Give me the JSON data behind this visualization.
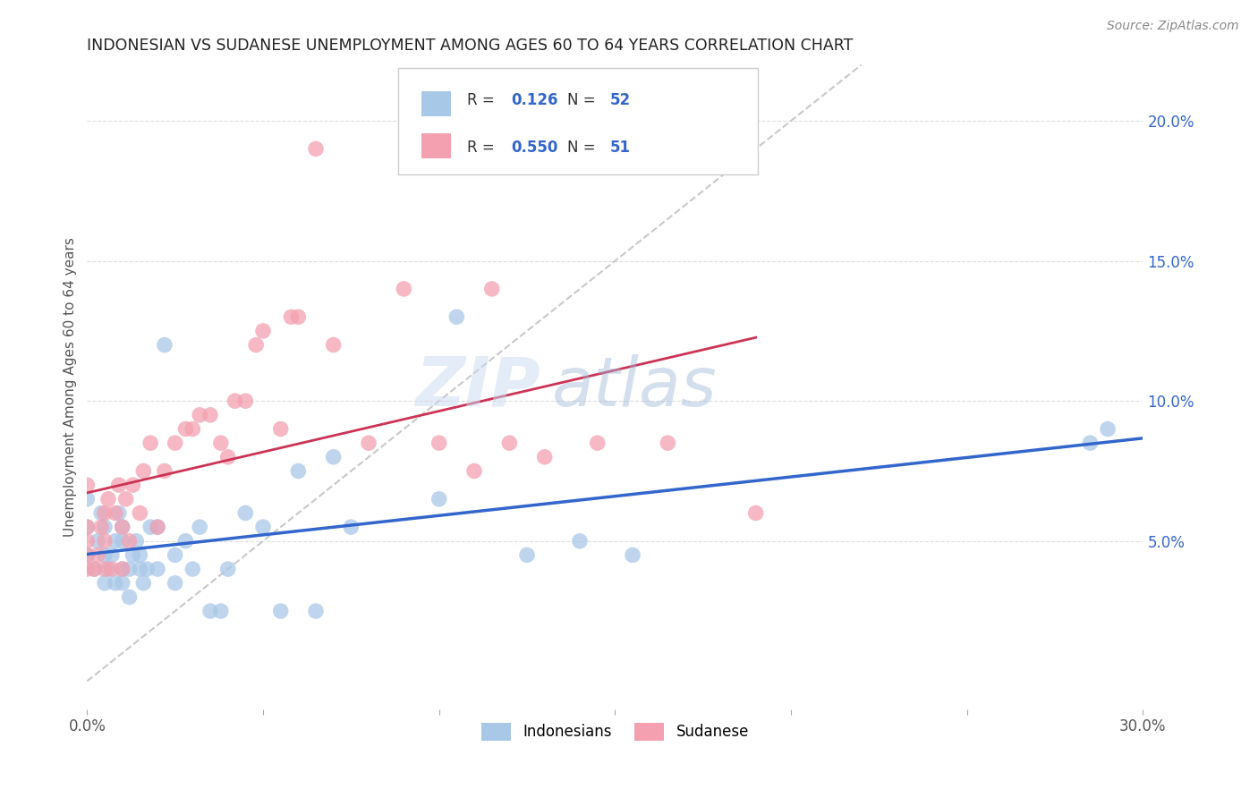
{
  "title": "INDONESIAN VS SUDANESE UNEMPLOYMENT AMONG AGES 60 TO 64 YEARS CORRELATION CHART",
  "source": "Source: ZipAtlas.com",
  "ylabel": "Unemployment Among Ages 60 to 64 years",
  "xlim": [
    0.0,
    0.3
  ],
  "ylim": [
    -0.01,
    0.22
  ],
  "yticks_right": [
    0.05,
    0.1,
    0.15,
    0.2
  ],
  "ytick_right_labels": [
    "5.0%",
    "10.0%",
    "15.0%",
    "20.0%"
  ],
  "color_indonesian": "#a8c8e8",
  "color_sudanese": "#f4a0b0",
  "color_line_indonesian": "#3366cc",
  "color_line_sudanese": "#cc3355",
  "color_diagonal": "#bbbbbb",
  "color_text_blue": "#3366cc",
  "watermark_zip": "ZIP",
  "watermark_atlas": "atlas",
  "background_color": "#ffffff",
  "grid_color": "#dddddd",
  "indonesian_x": [
    0.0,
    0.0,
    0.0,
    0.002,
    0.003,
    0.004,
    0.005,
    0.005,
    0.005,
    0.006,
    0.007,
    0.008,
    0.008,
    0.009,
    0.01,
    0.01,
    0.01,
    0.01,
    0.012,
    0.012,
    0.013,
    0.014,
    0.015,
    0.015,
    0.016,
    0.017,
    0.018,
    0.02,
    0.02,
    0.022,
    0.025,
    0.025,
    0.028,
    0.03,
    0.032,
    0.035,
    0.038,
    0.04,
    0.045,
    0.05,
    0.055,
    0.06,
    0.065,
    0.07,
    0.075,
    0.1,
    0.105,
    0.125,
    0.14,
    0.155,
    0.285,
    0.29
  ],
  "indonesian_y": [
    0.045,
    0.055,
    0.065,
    0.04,
    0.05,
    0.06,
    0.035,
    0.045,
    0.055,
    0.04,
    0.045,
    0.035,
    0.05,
    0.06,
    0.035,
    0.04,
    0.05,
    0.055,
    0.03,
    0.04,
    0.045,
    0.05,
    0.04,
    0.045,
    0.035,
    0.04,
    0.055,
    0.04,
    0.055,
    0.12,
    0.035,
    0.045,
    0.05,
    0.04,
    0.055,
    0.025,
    0.025,
    0.04,
    0.06,
    0.055,
    0.025,
    0.075,
    0.025,
    0.08,
    0.055,
    0.065,
    0.13,
    0.045,
    0.05,
    0.045,
    0.085,
    0.09
  ],
  "sudanese_x": [
    0.0,
    0.0,
    0.0,
    0.0,
    0.0,
    0.002,
    0.003,
    0.004,
    0.005,
    0.005,
    0.005,
    0.006,
    0.007,
    0.008,
    0.009,
    0.01,
    0.01,
    0.011,
    0.012,
    0.013,
    0.015,
    0.016,
    0.018,
    0.02,
    0.022,
    0.025,
    0.028,
    0.03,
    0.032,
    0.035,
    0.038,
    0.04,
    0.042,
    0.045,
    0.048,
    0.05,
    0.055,
    0.058,
    0.06,
    0.065,
    0.07,
    0.08,
    0.09,
    0.1,
    0.11,
    0.115,
    0.12,
    0.13,
    0.145,
    0.165,
    0.19
  ],
  "sudanese_y": [
    0.04,
    0.045,
    0.05,
    0.055,
    0.07,
    0.04,
    0.045,
    0.055,
    0.04,
    0.05,
    0.06,
    0.065,
    0.04,
    0.06,
    0.07,
    0.04,
    0.055,
    0.065,
    0.05,
    0.07,
    0.06,
    0.075,
    0.085,
    0.055,
    0.075,
    0.085,
    0.09,
    0.09,
    0.095,
    0.095,
    0.085,
    0.08,
    0.1,
    0.1,
    0.12,
    0.125,
    0.09,
    0.13,
    0.13,
    0.19,
    0.12,
    0.085,
    0.14,
    0.085,
    0.075,
    0.14,
    0.085,
    0.08,
    0.085,
    0.085,
    0.06
  ]
}
